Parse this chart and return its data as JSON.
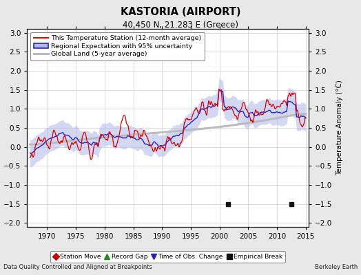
{
  "title": "KASTORIA (AIRPORT)",
  "subtitle": "40.450 N, 21.283 E (Greece)",
  "ylabel": "Temperature Anomaly (°C)",
  "xlabel_left": "Data Quality Controlled and Aligned at Breakpoints",
  "xlabel_right": "Berkeley Earth",
  "xlim": [
    1966.5,
    2015.5
  ],
  "ylim": [
    -2.1,
    3.1
  ],
  "yticks": [
    -2,
    -1.5,
    -1,
    -0.5,
    0,
    0.5,
    1,
    1.5,
    2,
    2.5,
    3
  ],
  "xticks": [
    1970,
    1975,
    1980,
    1985,
    1990,
    1995,
    2000,
    2005,
    2010,
    2015
  ],
  "bg_color": "#e8e8e8",
  "plot_bg": "#ffffff",
  "station_color": "#dd0000",
  "regional_color": "#2222cc",
  "regional_fill": "#b0b8e8",
  "global_color": "#bbbbbb",
  "legend_items": [
    "This Temperature Station (12-month average)",
    "Regional Expectation with 95% uncertainty",
    "Global Land (5-year average)"
  ],
  "marker_legend": [
    {
      "label": "Station Move",
      "color": "#cc0000",
      "marker": "D"
    },
    {
      "label": "Record Gap",
      "color": "#228B22",
      "marker": "^"
    },
    {
      "label": "Time of Obs. Change",
      "color": "#2222cc",
      "marker": "v"
    },
    {
      "label": "Empirical Break",
      "color": "#111111",
      "marker": "s"
    }
  ],
  "empirical_breaks": [
    2001.5,
    2012.5
  ],
  "seed": 77
}
